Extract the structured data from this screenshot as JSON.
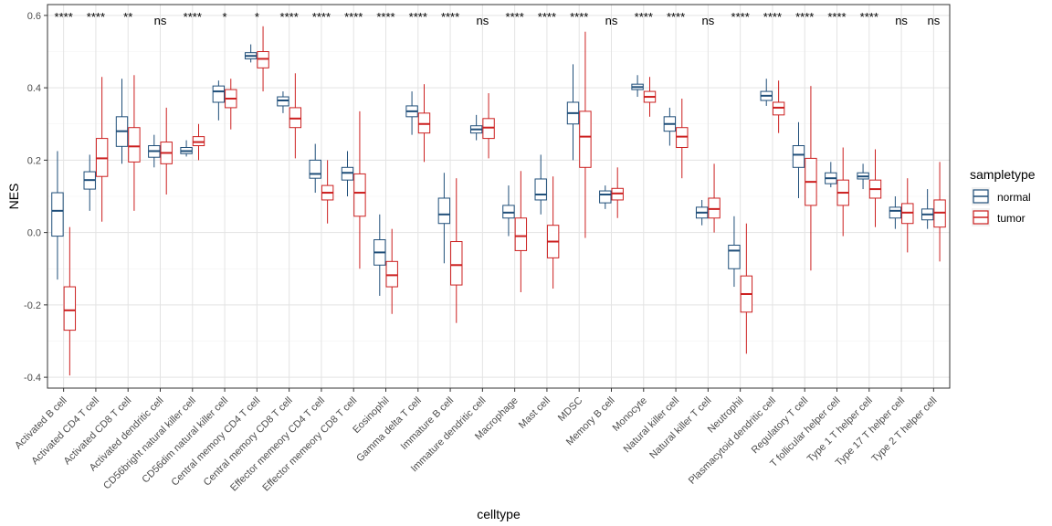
{
  "chart_data": {
    "type": "boxplot",
    "xlabel": "celltype",
    "ylabel": "NES",
    "ylim": [
      -0.43,
      0.63
    ],
    "yticks": [
      -0.4,
      -0.2,
      0.0,
      0.2,
      0.4,
      0.6
    ],
    "ytick_labels": [
      "-0.4",
      "-0.2",
      "0.0",
      "0.2",
      "0.4",
      "0.6"
    ],
    "legend": {
      "title": "sampletype",
      "position": "right",
      "entries": [
        {
          "name": "normal",
          "color": "#1f4e79"
        },
        {
          "name": "tumor",
          "color": "#cc1f1f"
        }
      ]
    },
    "categories": [
      "Activated B cell",
      "Activated CD4 T cell",
      "Activated CD8 T cell",
      "Activated dendritic cell",
      "CD56bright natural killer cell",
      "CD56dim natural killer cell",
      "Central memory CD4 T cell",
      "Central memory CD8 T cell",
      "Effector memeory CD4 T cell",
      "Effector memeory CD8 T cell",
      "Eosinophil",
      "Gamma delta T cell",
      "Immature  B cell",
      "Immature dendritic cell",
      "Macrophage",
      "Mast cell",
      "MDSC",
      "Memory B cell",
      "Monocyte",
      "Natural killer cell",
      "Natural killer T cell",
      "Neutrophil",
      "Plasmacytoid dendritic cell",
      "Regulatory T cell",
      "T follicular helper cell",
      "Type 1 T helper cell",
      "Type 17 T helper cell",
      "Type 2 T helper cell"
    ],
    "significance": [
      "****",
      "****",
      "**",
      "ns",
      "****",
      "*",
      "*",
      "****",
      "****",
      "****",
      "****",
      "****",
      "****",
      "ns",
      "****",
      "****",
      "****",
      "ns",
      "****",
      "****",
      "ns",
      "****",
      "****",
      "****",
      "****",
      "****",
      "ns",
      "ns"
    ],
    "series": [
      {
        "name": "normal",
        "boxes": [
          {
            "min": -0.13,
            "q1": -0.01,
            "median": 0.06,
            "q3": 0.11,
            "max": 0.225
          },
          {
            "min": 0.06,
            "q1": 0.12,
            "median": 0.145,
            "q3": 0.168,
            "max": 0.215
          },
          {
            "min": 0.19,
            "q1": 0.238,
            "median": 0.28,
            "q3": 0.32,
            "max": 0.425
          },
          {
            "min": 0.18,
            "q1": 0.208,
            "median": 0.225,
            "q3": 0.24,
            "max": 0.27
          },
          {
            "min": 0.21,
            "q1": 0.218,
            "median": 0.225,
            "q3": 0.235,
            "max": 0.255
          },
          {
            "min": 0.31,
            "q1": 0.36,
            "median": 0.39,
            "q3": 0.405,
            "max": 0.42
          },
          {
            "min": 0.47,
            "q1": 0.48,
            "median": 0.488,
            "q3": 0.497,
            "max": 0.52
          },
          {
            "min": 0.33,
            "q1": 0.35,
            "median": 0.365,
            "q3": 0.375,
            "max": 0.39
          },
          {
            "min": 0.11,
            "q1": 0.15,
            "median": 0.162,
            "q3": 0.2,
            "max": 0.245
          },
          {
            "min": 0.1,
            "q1": 0.145,
            "median": 0.165,
            "q3": 0.18,
            "max": 0.225
          },
          {
            "min": -0.175,
            "q1": -0.09,
            "median": -0.055,
            "q3": -0.02,
            "max": 0.05
          },
          {
            "min": 0.27,
            "q1": 0.32,
            "median": 0.335,
            "q3": 0.35,
            "max": 0.39
          },
          {
            "min": -0.085,
            "q1": 0.025,
            "median": 0.05,
            "q3": 0.095,
            "max": 0.165
          },
          {
            "min": 0.255,
            "q1": 0.275,
            "median": 0.285,
            "q3": 0.295,
            "max": 0.325
          },
          {
            "min": -0.01,
            "q1": 0.04,
            "median": 0.055,
            "q3": 0.075,
            "max": 0.13
          },
          {
            "min": 0.05,
            "q1": 0.09,
            "median": 0.105,
            "q3": 0.148,
            "max": 0.215
          },
          {
            "min": 0.2,
            "q1": 0.3,
            "median": 0.33,
            "q3": 0.36,
            "max": 0.465
          },
          {
            "min": 0.065,
            "q1": 0.082,
            "median": 0.105,
            "q3": 0.115,
            "max": 0.13
          },
          {
            "min": 0.375,
            "q1": 0.395,
            "median": 0.402,
            "q3": 0.41,
            "max": 0.435
          },
          {
            "min": 0.24,
            "q1": 0.28,
            "median": 0.3,
            "q3": 0.32,
            "max": 0.345
          },
          {
            "min": 0.02,
            "q1": 0.04,
            "median": 0.055,
            "q3": 0.07,
            "max": 0.09
          },
          {
            "min": -0.15,
            "q1": -0.1,
            "median": -0.05,
            "q3": -0.035,
            "max": 0.045
          },
          {
            "min": 0.35,
            "q1": 0.365,
            "median": 0.378,
            "q3": 0.39,
            "max": 0.425
          },
          {
            "min": 0.095,
            "q1": 0.18,
            "median": 0.215,
            "q3": 0.24,
            "max": 0.305
          },
          {
            "min": 0.125,
            "q1": 0.135,
            "median": 0.15,
            "q3": 0.165,
            "max": 0.195
          },
          {
            "min": 0.12,
            "q1": 0.148,
            "median": 0.155,
            "q3": 0.165,
            "max": 0.19
          },
          {
            "min": 0.01,
            "q1": 0.04,
            "median": 0.06,
            "q3": 0.07,
            "max": 0.1
          },
          {
            "min": 0.01,
            "q1": 0.035,
            "median": 0.05,
            "q3": 0.065,
            "max": 0.12
          }
        ]
      },
      {
        "name": "tumor",
        "boxes": [
          {
            "min": -0.395,
            "q1": -0.27,
            "median": -0.215,
            "q3": -0.15,
            "max": 0.015
          },
          {
            "min": 0.03,
            "q1": 0.155,
            "median": 0.205,
            "q3": 0.26,
            "max": 0.43
          },
          {
            "min": 0.06,
            "q1": 0.195,
            "median": 0.238,
            "q3": 0.29,
            "max": 0.435
          },
          {
            "min": 0.105,
            "q1": 0.19,
            "median": 0.22,
            "q3": 0.25,
            "max": 0.345
          },
          {
            "min": 0.2,
            "q1": 0.24,
            "median": 0.25,
            "q3": 0.265,
            "max": 0.3
          },
          {
            "min": 0.285,
            "q1": 0.345,
            "median": 0.37,
            "q3": 0.395,
            "max": 0.425
          },
          {
            "min": 0.39,
            "q1": 0.455,
            "median": 0.48,
            "q3": 0.5,
            "max": 0.57
          },
          {
            "min": 0.205,
            "q1": 0.29,
            "median": 0.315,
            "q3": 0.345,
            "max": 0.44
          },
          {
            "min": 0.025,
            "q1": 0.09,
            "median": 0.11,
            "q3": 0.13,
            "max": 0.2
          },
          {
            "min": -0.1,
            "q1": 0.045,
            "median": 0.11,
            "q3": 0.162,
            "max": 0.335
          },
          {
            "min": -0.225,
            "q1": -0.15,
            "median": -0.118,
            "q3": -0.08,
            "max": 0.01
          },
          {
            "min": 0.195,
            "q1": 0.275,
            "median": 0.3,
            "q3": 0.33,
            "max": 0.41
          },
          {
            "min": -0.25,
            "q1": -0.145,
            "median": -0.09,
            "q3": -0.025,
            "max": 0.15
          },
          {
            "min": 0.205,
            "q1": 0.26,
            "median": 0.29,
            "q3": 0.315,
            "max": 0.385
          },
          {
            "min": -0.165,
            "q1": -0.05,
            "median": -0.01,
            "q3": 0.04,
            "max": 0.17
          },
          {
            "min": -0.155,
            "q1": -0.07,
            "median": -0.025,
            "q3": 0.02,
            "max": 0.155
          },
          {
            "min": -0.015,
            "q1": 0.18,
            "median": 0.265,
            "q3": 0.335,
            "max": 0.555
          },
          {
            "min": 0.04,
            "q1": 0.09,
            "median": 0.108,
            "q3": 0.122,
            "max": 0.18
          },
          {
            "min": 0.32,
            "q1": 0.36,
            "median": 0.375,
            "q3": 0.39,
            "max": 0.43
          },
          {
            "min": 0.15,
            "q1": 0.235,
            "median": 0.265,
            "q3": 0.29,
            "max": 0.37
          },
          {
            "min": 0.0,
            "q1": 0.04,
            "median": 0.065,
            "q3": 0.095,
            "max": 0.19
          },
          {
            "min": -0.335,
            "q1": -0.22,
            "median": -0.17,
            "q3": -0.12,
            "max": 0.025
          },
          {
            "min": 0.275,
            "q1": 0.325,
            "median": 0.345,
            "q3": 0.36,
            "max": 0.42
          },
          {
            "min": -0.105,
            "q1": 0.075,
            "median": 0.14,
            "q3": 0.205,
            "max": 0.405
          },
          {
            "min": -0.01,
            "q1": 0.075,
            "median": 0.11,
            "q3": 0.145,
            "max": 0.235
          },
          {
            "min": 0.015,
            "q1": 0.095,
            "median": 0.12,
            "q3": 0.145,
            "max": 0.23
          },
          {
            "min": -0.055,
            "q1": 0.025,
            "median": 0.055,
            "q3": 0.08,
            "max": 0.15
          },
          {
            "min": -0.08,
            "q1": 0.015,
            "median": 0.055,
            "q3": 0.09,
            "max": 0.195
          }
        ]
      }
    ]
  }
}
